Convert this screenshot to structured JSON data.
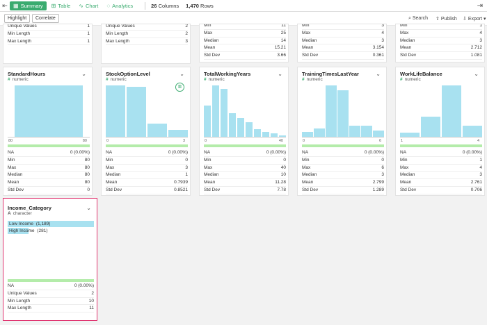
{
  "topbar": {
    "tabs": [
      {
        "label": "Summary",
        "icon": "summary-icon",
        "active": true
      },
      {
        "label": "Table",
        "icon": "table-icon",
        "active": false
      },
      {
        "label": "Chart",
        "icon": "chart-icon",
        "active": false
      },
      {
        "label": "Analytics",
        "icon": "bulb-icon",
        "active": false
      }
    ],
    "columns_count": "26",
    "columns_label": "Columns",
    "rows_count": "1,470",
    "rows_label": "Rows"
  },
  "toolbar": {
    "highlight": "Highlight",
    "correlate": "Correlate",
    "search": "Search",
    "publish": "Publish",
    "export": "Export"
  },
  "accent": "#3aab6f",
  "bar_color": "#a8e1f0",
  "highlight_color": "#e0336f",
  "top_cards": [
    {
      "rows": [
        [
          "Unique Values",
          "1"
        ],
        [
          "Min Length",
          "1"
        ],
        [
          "Max Length",
          "1"
        ]
      ]
    },
    {
      "rows": [
        [
          "Unique Values",
          "2"
        ],
        [
          "Min Length",
          "2"
        ],
        [
          "Max Length",
          "3"
        ]
      ]
    },
    {
      "rows": [
        [
          "Min",
          "11"
        ],
        [
          "Max",
          "25"
        ],
        [
          "Median",
          "14"
        ],
        [
          "Mean",
          "15.21"
        ],
        [
          "Std Dev",
          "3.66"
        ]
      ]
    },
    {
      "rows": [
        [
          "Min",
          "3"
        ],
        [
          "Max",
          "4"
        ],
        [
          "Median",
          "3"
        ],
        [
          "Mean",
          "3.154"
        ],
        [
          "Std Dev",
          "0.361"
        ]
      ]
    },
    {
      "rows": [
        [
          "Min",
          "1"
        ],
        [
          "Max",
          "4"
        ],
        [
          "Median",
          "3"
        ],
        [
          "Mean",
          "2.712"
        ],
        [
          "Std Dev",
          "1.081"
        ]
      ]
    }
  ],
  "cards": [
    {
      "title": "StandardHours",
      "type": "numeric",
      "hist": [
        1.0
      ],
      "axis_min": "80",
      "axis_max": "80",
      "rows": [
        [
          "NA",
          "0 (0.00%)"
        ],
        [
          "Min",
          "80"
        ],
        [
          "Max",
          "80"
        ],
        [
          "Median",
          "80"
        ],
        [
          "Mean",
          "80"
        ],
        [
          "Std Dev",
          "0"
        ]
      ]
    },
    {
      "title": "StockOptionLevel",
      "type": "numeric",
      "hist": [
        1.0,
        0.97,
        0.26,
        0.14
      ],
      "axis_min": "0",
      "axis_max": "3",
      "rows": [
        [
          "NA",
          "0 (0.00%)"
        ],
        [
          "Min",
          "0"
        ],
        [
          "Max",
          "3"
        ],
        [
          "Median",
          "1"
        ],
        [
          "Mean",
          "0.7939"
        ],
        [
          "Std Dev",
          "0.8521"
        ]
      ]
    },
    {
      "title": "TotalWorkingYears",
      "type": "numeric",
      "hist": [
        0.61,
        1.0,
        0.93,
        0.46,
        0.37,
        0.29,
        0.15,
        0.1,
        0.07,
        0.03
      ],
      "axis_min": "0",
      "axis_max": "40",
      "rows": [
        [
          "NA",
          "0 (0.00%)"
        ],
        [
          "Min",
          "0"
        ],
        [
          "Max",
          "40"
        ],
        [
          "Median",
          "10"
        ],
        [
          "Mean",
          "11.28"
        ],
        [
          "Std Dev",
          "7.78"
        ]
      ]
    },
    {
      "title": "TrainingTimesLastYear",
      "type": "numeric",
      "hist": [
        0.1,
        0.16,
        1.0,
        0.9,
        0.22,
        0.22,
        0.12
      ],
      "axis_min": "0",
      "axis_max": "6",
      "rows": [
        [
          "NA",
          "0 (0.00%)"
        ],
        [
          "Min",
          "0"
        ],
        [
          "Max",
          "6"
        ],
        [
          "Median",
          "3"
        ],
        [
          "Mean",
          "2.799"
        ],
        [
          "Std Dev",
          "1.289"
        ]
      ]
    },
    {
      "title": "WorkLifeBalance",
      "type": "numeric",
      "hist": [
        0.08,
        0.39,
        1.0,
        0.22
      ],
      "axis_min": "1",
      "axis_max": "4",
      "rows": [
        [
          "NA",
          "0 (0.00%)"
        ],
        [
          "Min",
          "1"
        ],
        [
          "Max",
          "4"
        ],
        [
          "Median",
          "3"
        ],
        [
          "Mean",
          "2.761"
        ],
        [
          "Std Dev",
          "0.706"
        ]
      ]
    }
  ],
  "income_card": {
    "title": "Income_Category",
    "type_icon": "A",
    "type": "character",
    "categories": [
      {
        "label": "Low Income",
        "count": "(1,189)",
        "share": 1.0
      },
      {
        "label": "High Income",
        "count": "(281)",
        "share": 0.24
      }
    ],
    "rows": [
      [
        "NA",
        "0 (0.00%)"
      ],
      [
        "Unique Values",
        "2"
      ],
      [
        "Min Length",
        "10"
      ],
      [
        "Max Length",
        "11"
      ]
    ]
  }
}
